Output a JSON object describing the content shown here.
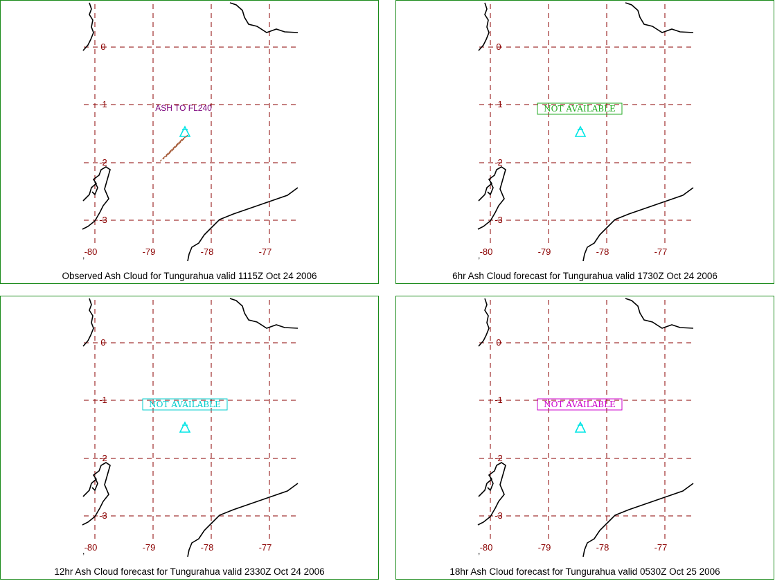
{
  "colors": {
    "grid": "#8b0000",
    "coast": "#000000",
    "panel_border": "#1a8a1a",
    "volcano": "#00e5e5",
    "ash_label": "#7a007a",
    "ash_plume": "#a0522d"
  },
  "grid_labels": {
    "lat": [
      "0",
      "-1",
      "-2",
      "-3"
    ],
    "lon": [
      "-80",
      "-79",
      "-78",
      "-77"
    ]
  },
  "panels": [
    {
      "caption": "Observed Ash Cloud for Tungurahua valid 1115Z Oct 24 2006",
      "annotation": "ASH TO FL240",
      "annotation_type": "label",
      "annotation_color": "#7a007a",
      "volcano_icon": "volcano-triangle-icon"
    },
    {
      "caption": "6hr Ash Cloud forecast for Tungurahua valid 1730Z Oct 24 2006",
      "annotation": "NOT AVAILABLE",
      "annotation_type": "box",
      "annotation_color": "#22aa22",
      "volcano_icon": "volcano-triangle-icon"
    },
    {
      "caption": "12hr Ash Cloud forecast for Tungurahua valid 2330Z Oct 24 2006",
      "annotation": "NOT AVAILABLE",
      "annotation_type": "box",
      "annotation_color": "#00cccc",
      "volcano_icon": "volcano-triangle-icon"
    },
    {
      "caption": "18hr Ash Cloud forecast for Tungurahua valid 0530Z Oct 25 2006",
      "annotation": "NOT AVAILABLE",
      "annotation_type": "box",
      "annotation_color": "#cc00cc",
      "volcano_icon": "volcano-triangle-icon"
    }
  ]
}
